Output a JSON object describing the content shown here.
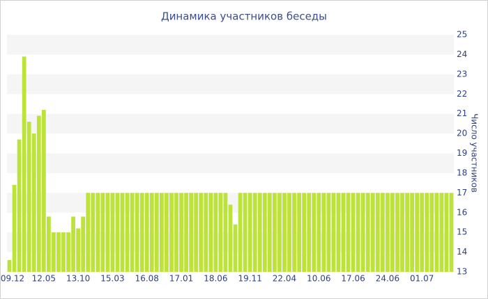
{
  "chart_data": {
    "type": "bar",
    "title": "Динамика участников беседы",
    "y_axis_label": "Число участников",
    "categories": [
      "09.12",
      null,
      null,
      null,
      null,
      null,
      null,
      "12.05",
      null,
      null,
      null,
      null,
      null,
      null,
      "13.10",
      null,
      null,
      null,
      null,
      null,
      null,
      "15.03",
      null,
      null,
      null,
      null,
      null,
      null,
      "16.08",
      null,
      null,
      null,
      null,
      null,
      null,
      "17.01",
      null,
      null,
      null,
      null,
      null,
      null,
      "18.06",
      null,
      null,
      null,
      null,
      null,
      null,
      "19.11",
      null,
      null,
      null,
      null,
      null,
      null,
      "22.04",
      null,
      null,
      null,
      null,
      null,
      null,
      "10.06",
      null,
      null,
      null,
      null,
      null,
      null,
      "17.06",
      null,
      null,
      null,
      null,
      null,
      null,
      "24.06",
      null,
      null,
      null,
      null,
      null,
      null,
      "01.07",
      null,
      null,
      null,
      null,
      null,
      null
    ],
    "values": [
      13.6,
      17.4,
      19.7,
      23.9,
      20.6,
      20.0,
      20.9,
      21.2,
      15.8,
      15.0,
      15.0,
      15.0,
      15.0,
      15.8,
      15.2,
      15.8,
      17,
      17,
      17,
      17,
      17,
      17,
      17,
      17,
      17,
      17,
      17,
      17,
      17,
      17,
      17,
      17,
      17,
      17,
      17,
      17,
      17,
      17,
      17,
      17,
      17,
      17,
      17,
      17,
      17,
      16.4,
      15.4,
      17,
      17,
      17,
      17,
      17,
      17,
      17,
      17,
      17,
      17,
      17,
      17,
      17,
      17,
      17,
      17,
      17,
      17,
      17,
      17,
      17,
      17,
      17,
      17,
      17,
      17,
      17,
      17,
      17,
      17,
      17,
      17,
      17,
      17,
      17,
      17,
      17,
      17,
      17,
      17,
      17,
      17,
      17,
      17
    ],
    "color": "#bde33b",
    "ylim": [
      13,
      25
    ],
    "yticks": [
      13,
      14,
      15,
      16,
      17,
      18,
      19,
      20,
      21,
      22,
      23,
      24,
      25
    ],
    "grid": "banded",
    "y_axis_side": "right"
  }
}
